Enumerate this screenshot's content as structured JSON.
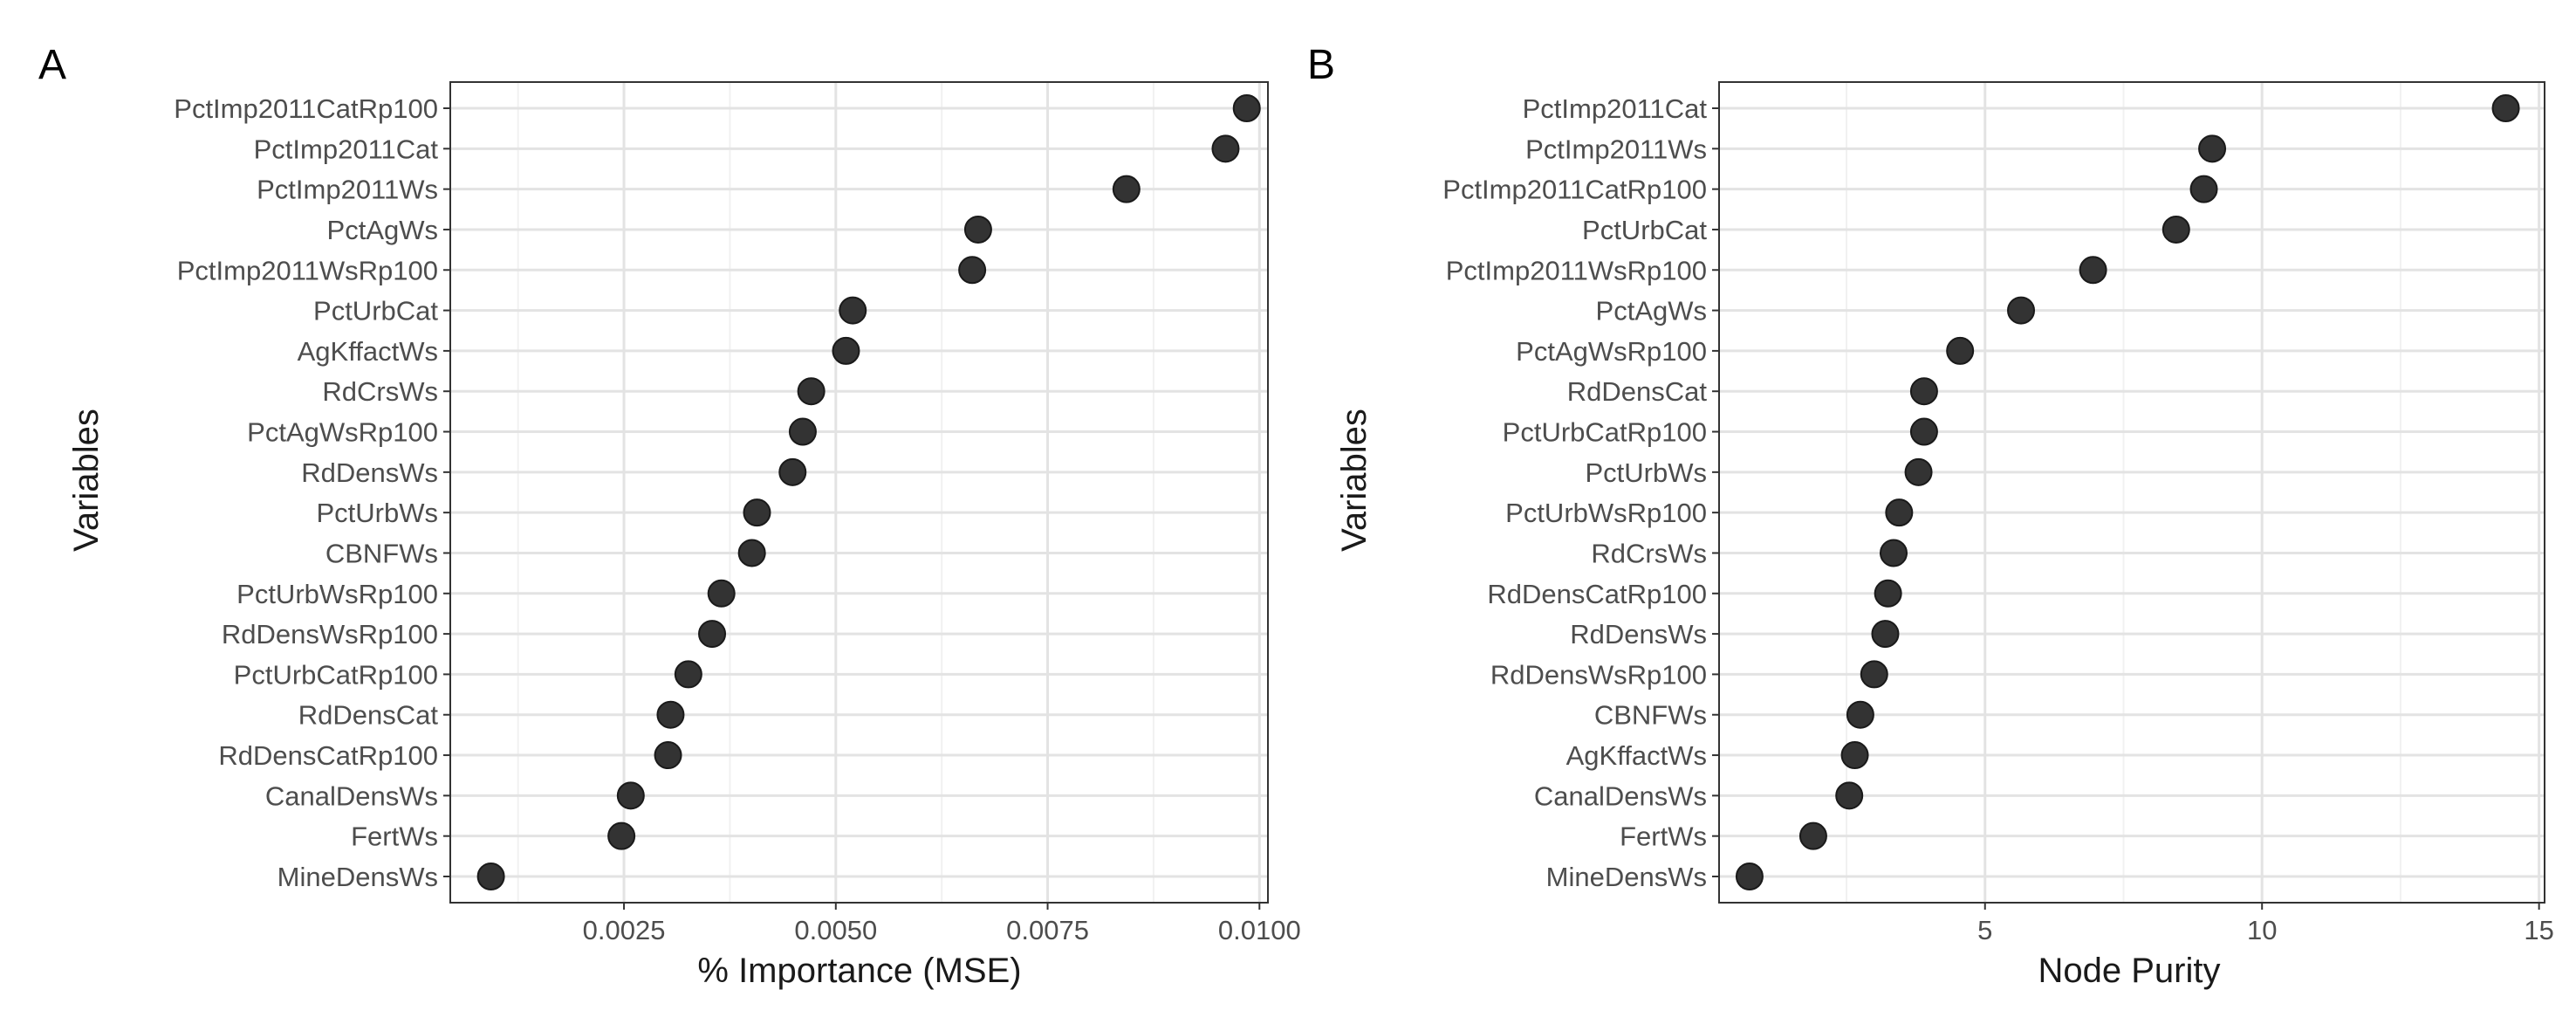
{
  "chart_data": [
    {
      "type": "scatter",
      "panel_tag": "A",
      "xlabel": "% Importance (MSE)",
      "ylabel": "Variables",
      "xlim": [
        0.00045,
        0.0101
      ],
      "xticks": [
        0.0025,
        0.005,
        0.0075,
        0.01
      ],
      "xtick_labels": [
        "0.0025",
        "0.0050",
        "0.0075",
        "0.0100"
      ],
      "grid": true,
      "point_color": "#333333",
      "points": [
        {
          "label": "PctImp2011CatRp100",
          "value": 0.00985
        },
        {
          "label": "PctImp2011Cat",
          "value": 0.0096
        },
        {
          "label": "PctImp2011Ws",
          "value": 0.00843
        },
        {
          "label": "PctAgWs",
          "value": 0.00668
        },
        {
          "label": "PctImp2011WsRp100",
          "value": 0.00661
        },
        {
          "label": "PctUrbCat",
          "value": 0.0052
        },
        {
          "label": "AgKffactWs",
          "value": 0.00512
        },
        {
          "label": "RdCrsWs",
          "value": 0.00471
        },
        {
          "label": "PctAgWsRp100",
          "value": 0.00461
        },
        {
          "label": "RdDensWs",
          "value": 0.00449
        },
        {
          "label": "PctUrbWs",
          "value": 0.00407
        },
        {
          "label": "CBNFWs",
          "value": 0.00401
        },
        {
          "label": "PctUrbWsRp100",
          "value": 0.00365
        },
        {
          "label": "RdDensWsRp100",
          "value": 0.00354
        },
        {
          "label": "PctUrbCatRp100",
          "value": 0.00326
        },
        {
          "label": "RdDensCat",
          "value": 0.00305
        },
        {
          "label": "RdDensCatRp100",
          "value": 0.00302
        },
        {
          "label": "CanalDensWs",
          "value": 0.00258
        },
        {
          "label": "FertWs",
          "value": 0.00247
        },
        {
          "label": "MineDensWs",
          "value": 0.00093
        }
      ]
    },
    {
      "type": "scatter",
      "panel_tag": "B",
      "xlabel": "Node Purity",
      "ylabel": "Variables",
      "xlim": [
        0.2,
        15.1
      ],
      "xticks": [
        5,
        10,
        15
      ],
      "xtick_labels": [
        "5",
        "10",
        "15"
      ],
      "grid": true,
      "point_color": "#333333",
      "points": [
        {
          "label": "PctImp2011Cat",
          "value": 14.4
        },
        {
          "label": "PctImp2011Ws",
          "value": 9.1
        },
        {
          "label": "PctImp2011CatRp100",
          "value": 8.95
        },
        {
          "label": "PctUrbCat",
          "value": 8.45
        },
        {
          "label": "PctImp2011WsRp100",
          "value": 6.95
        },
        {
          "label": "PctAgWs",
          "value": 5.65
        },
        {
          "label": "PctAgWsRp100",
          "value": 4.55
        },
        {
          "label": "RdDensCat",
          "value": 3.9
        },
        {
          "label": "PctUrbCatRp100",
          "value": 3.9
        },
        {
          "label": "PctUrbWs",
          "value": 3.8
        },
        {
          "label": "PctUrbWsRp100",
          "value": 3.45
        },
        {
          "label": "RdCrsWs",
          "value": 3.35
        },
        {
          "label": "RdDensCatRp100",
          "value": 3.25
        },
        {
          "label": "RdDensWs",
          "value": 3.2
        },
        {
          "label": "RdDensWsRp100",
          "value": 3.0
        },
        {
          "label": "CBNFWs",
          "value": 2.75
        },
        {
          "label": "AgKffactWs",
          "value": 2.65
        },
        {
          "label": "CanalDensWs",
          "value": 2.55
        },
        {
          "label": "FertWs",
          "value": 1.9
        },
        {
          "label": "MineDensWs",
          "value": 0.75
        }
      ]
    }
  ]
}
